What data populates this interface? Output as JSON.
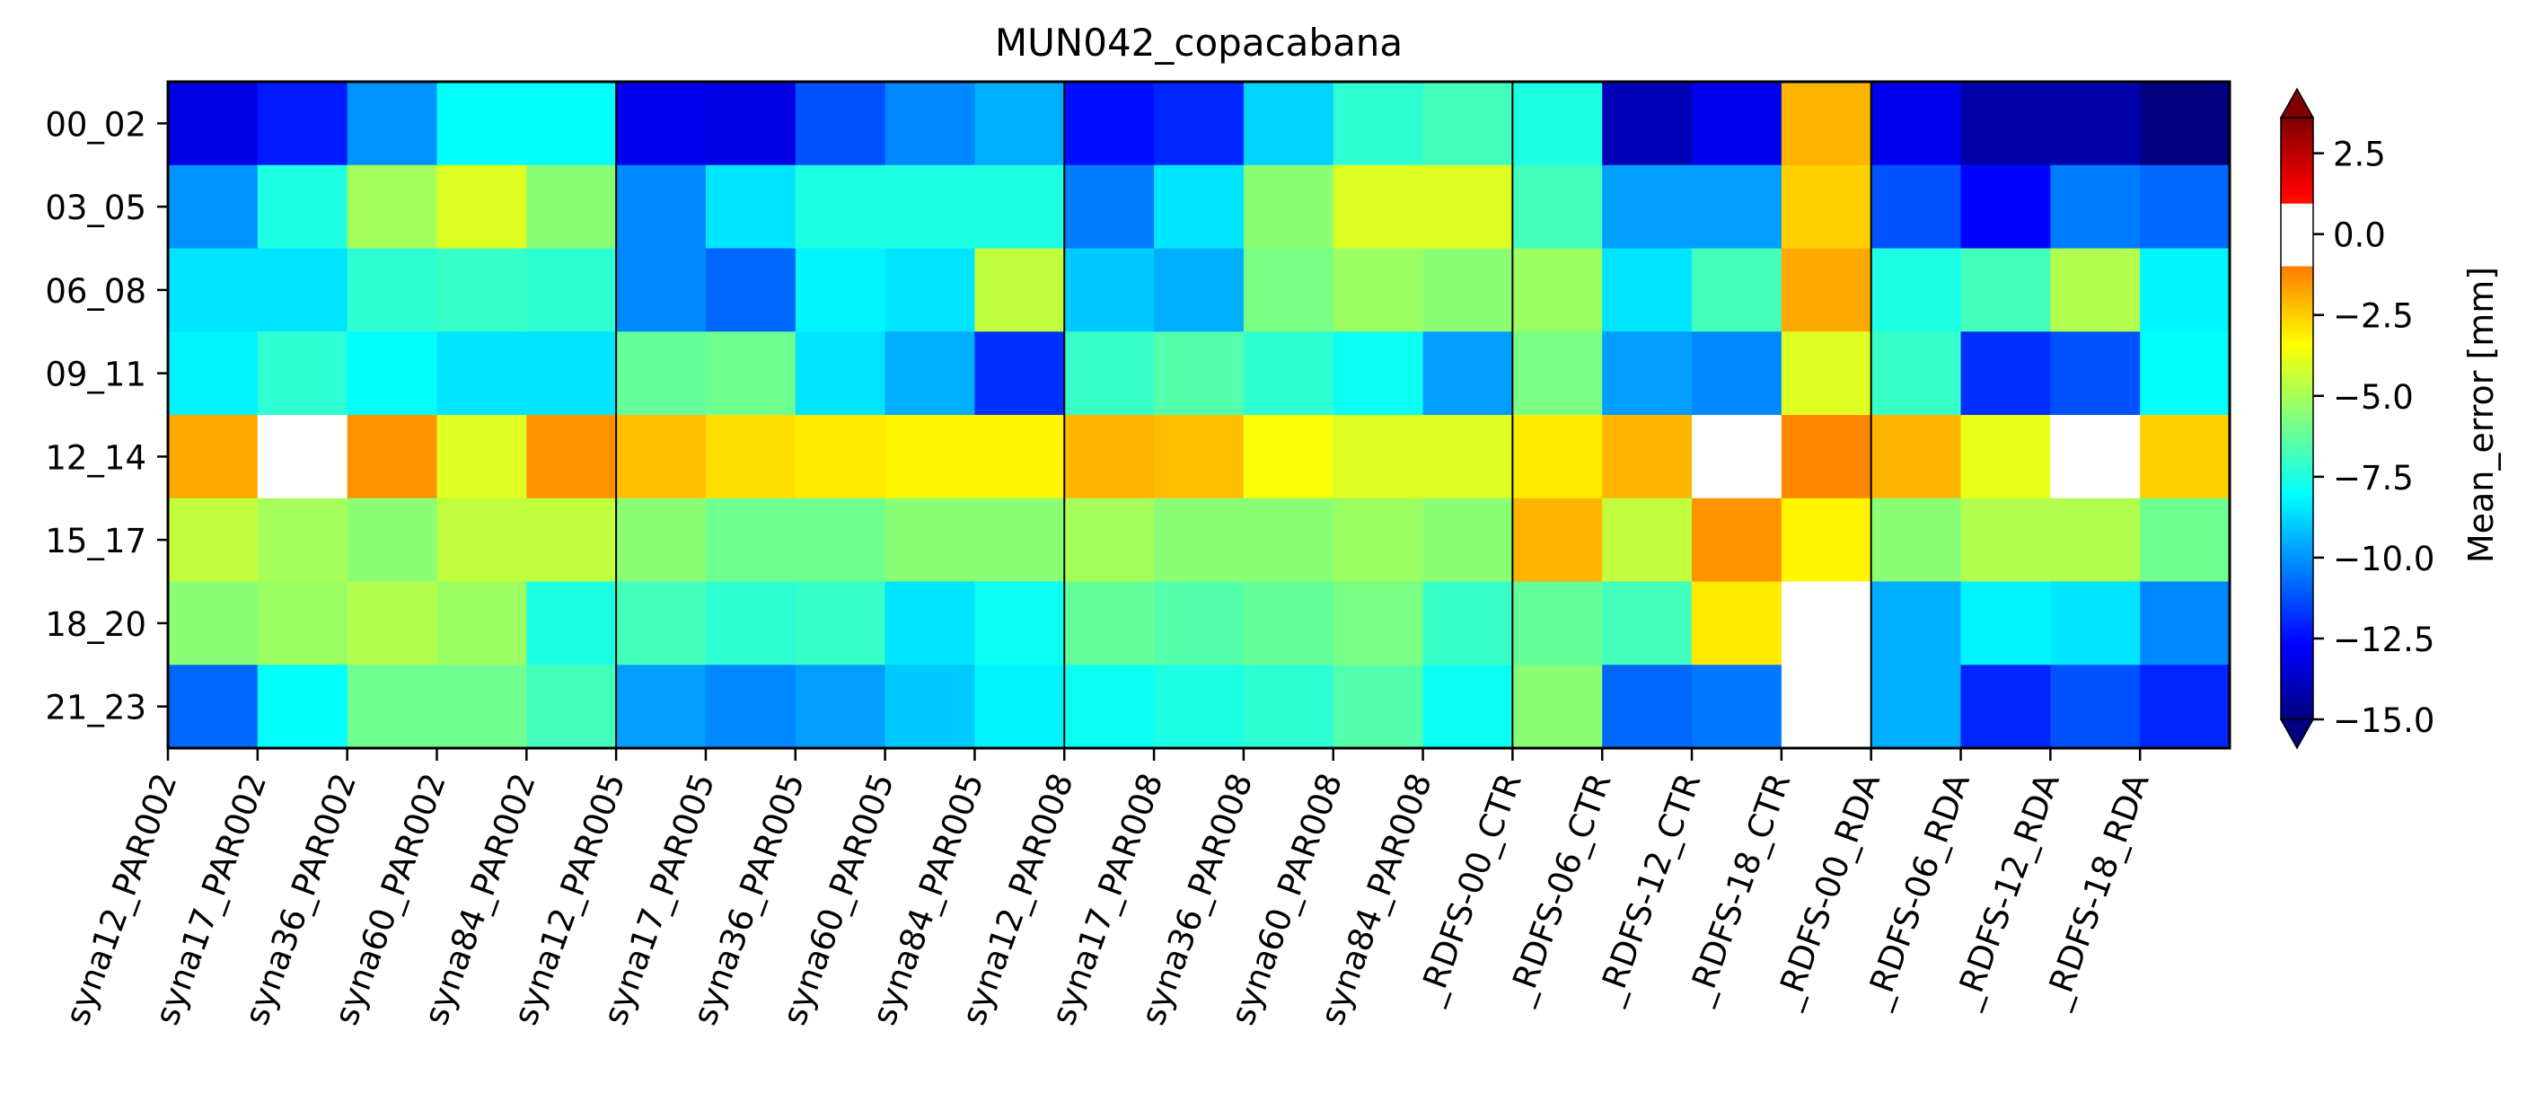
{
  "chart_data": {
    "type": "heatmap",
    "title": "MUN042_copacabana",
    "xlabel": "",
    "ylabel": "",
    "x_categories": [
      "syna12_PAR002",
      "syna17_PAR002",
      "syna36_PAR002",
      "syna60_PAR002",
      "syna84_PAR002",
      "syna12_PAR005",
      "syna17_PAR005",
      "syna36_PAR005",
      "syna60_PAR005",
      "syna84_PAR005",
      "syna12_PAR008",
      "syna17_PAR008",
      "syna36_PAR008",
      "syna60_PAR008",
      "syna84_PAR008",
      "_RDFS-00_CTR",
      "_RDFS-06_CTR",
      "_RDFS-12_CTR",
      "_RDFS-18_CTR",
      "_RDFS-00_RDA",
      "_RDFS-06_RDA",
      "_RDFS-12_RDA",
      "_RDFS-18_RDA"
    ],
    "y_categories": [
      "00_02",
      "03_05",
      "06_08",
      "09_11",
      "12_14",
      "15_17",
      "18_20",
      "21_23"
    ],
    "values": [
      [
        -13.2,
        -12.2,
        -10.0,
        -8.0,
        -8.0,
        -13.0,
        -13.2,
        -11.2,
        -10.2,
        -9.5,
        -12.4,
        -12.0,
        -8.8,
        -7.2,
        -6.8,
        -7.5,
        -14.0,
        -13.0,
        -2.0,
        -13.0,
        -14.2,
        -14.2,
        -15.0
      ],
      [
        -10.0,
        -7.5,
        -5.0,
        -4.0,
        -5.5,
        -10.2,
        -8.5,
        -7.5,
        -7.5,
        -7.5,
        -10.4,
        -8.5,
        -5.5,
        -4.0,
        -4.0,
        -6.8,
        -9.8,
        -9.8,
        -2.5,
        -11.2,
        -12.6,
        -10.4,
        -10.8
      ],
      [
        -8.5,
        -8.5,
        -7.2,
        -7.0,
        -7.2,
        -10.2,
        -10.8,
        -8.2,
        -8.5,
        -4.5,
        -9.0,
        -9.5,
        -5.8,
        -5.2,
        -5.5,
        -5.2,
        -8.5,
        -6.8,
        -1.8,
        -7.5,
        -6.8,
        -4.8,
        -8.2
      ],
      [
        -8.2,
        -7.2,
        -8.0,
        -8.5,
        -8.5,
        -6.2,
        -6.0,
        -8.5,
        -9.5,
        -11.8,
        -7.0,
        -6.5,
        -7.2,
        -7.8,
        -9.8,
        -5.8,
        -9.8,
        -10.2,
        -4.0,
        -7.0,
        -11.8,
        -11.2,
        -8.0
      ],
      [
        -1.8,
        -1.0,
        -1.4,
        -4.0,
        -1.4,
        -2.2,
        -2.8,
        -3.0,
        -3.2,
        -3.2,
        -2.0,
        -2.2,
        -3.5,
        -4.0,
        -4.0,
        -3.0,
        -2.0,
        0.0,
        -1.2,
        -2.0,
        -3.8,
        -1.0,
        -2.5
      ],
      [
        -4.5,
        -5.0,
        -5.5,
        -4.5,
        -4.5,
        -5.5,
        -6.0,
        -6.0,
        -5.5,
        -5.5,
        -5.0,
        -5.5,
        -5.5,
        -5.2,
        -5.5,
        -2.0,
        -4.5,
        -1.4,
        -3.2,
        -5.5,
        -4.8,
        -4.8,
        -6.0
      ],
      [
        -5.5,
        -5.2,
        -4.8,
        -5.2,
        -7.5,
        -6.8,
        -7.2,
        -7.0,
        -8.5,
        -7.8,
        -6.2,
        -6.5,
        -6.2,
        -5.8,
        -7.0,
        -6.2,
        -6.8,
        -3.0,
        -0.8,
        -9.5,
        -8.2,
        -8.5,
        -10.2
      ],
      [
        -10.8,
        -8.0,
        -6.0,
        -6.0,
        -6.8,
        -9.8,
        -10.2,
        -9.8,
        -9.0,
        -8.2,
        -7.8,
        -7.5,
        -7.2,
        -6.5,
        -7.8,
        -5.5,
        -10.8,
        -10.5,
        0.0,
        -9.5,
        -12.0,
        -11.2,
        -12.0
      ]
    ],
    "colorbar": {
      "label": "Mean_error [mm]",
      "ticks": [
        "2.5",
        "0.0",
        "−2.5",
        "−5.0",
        "−7.5",
        "−10.0",
        "−12.5",
        "−15.0"
      ],
      "tick_values": [
        2.5,
        0,
        -2.5,
        -5,
        -7.5,
        -10,
        -12.5,
        -15
      ],
      "vmin": -15,
      "vmax": 3.6,
      "white_band": [
        -1,
        1
      ],
      "colormap": "jet",
      "extend": "both"
    },
    "group_separators_after_column": [
      5,
      10,
      15,
      19
    ],
    "grid": false
  }
}
